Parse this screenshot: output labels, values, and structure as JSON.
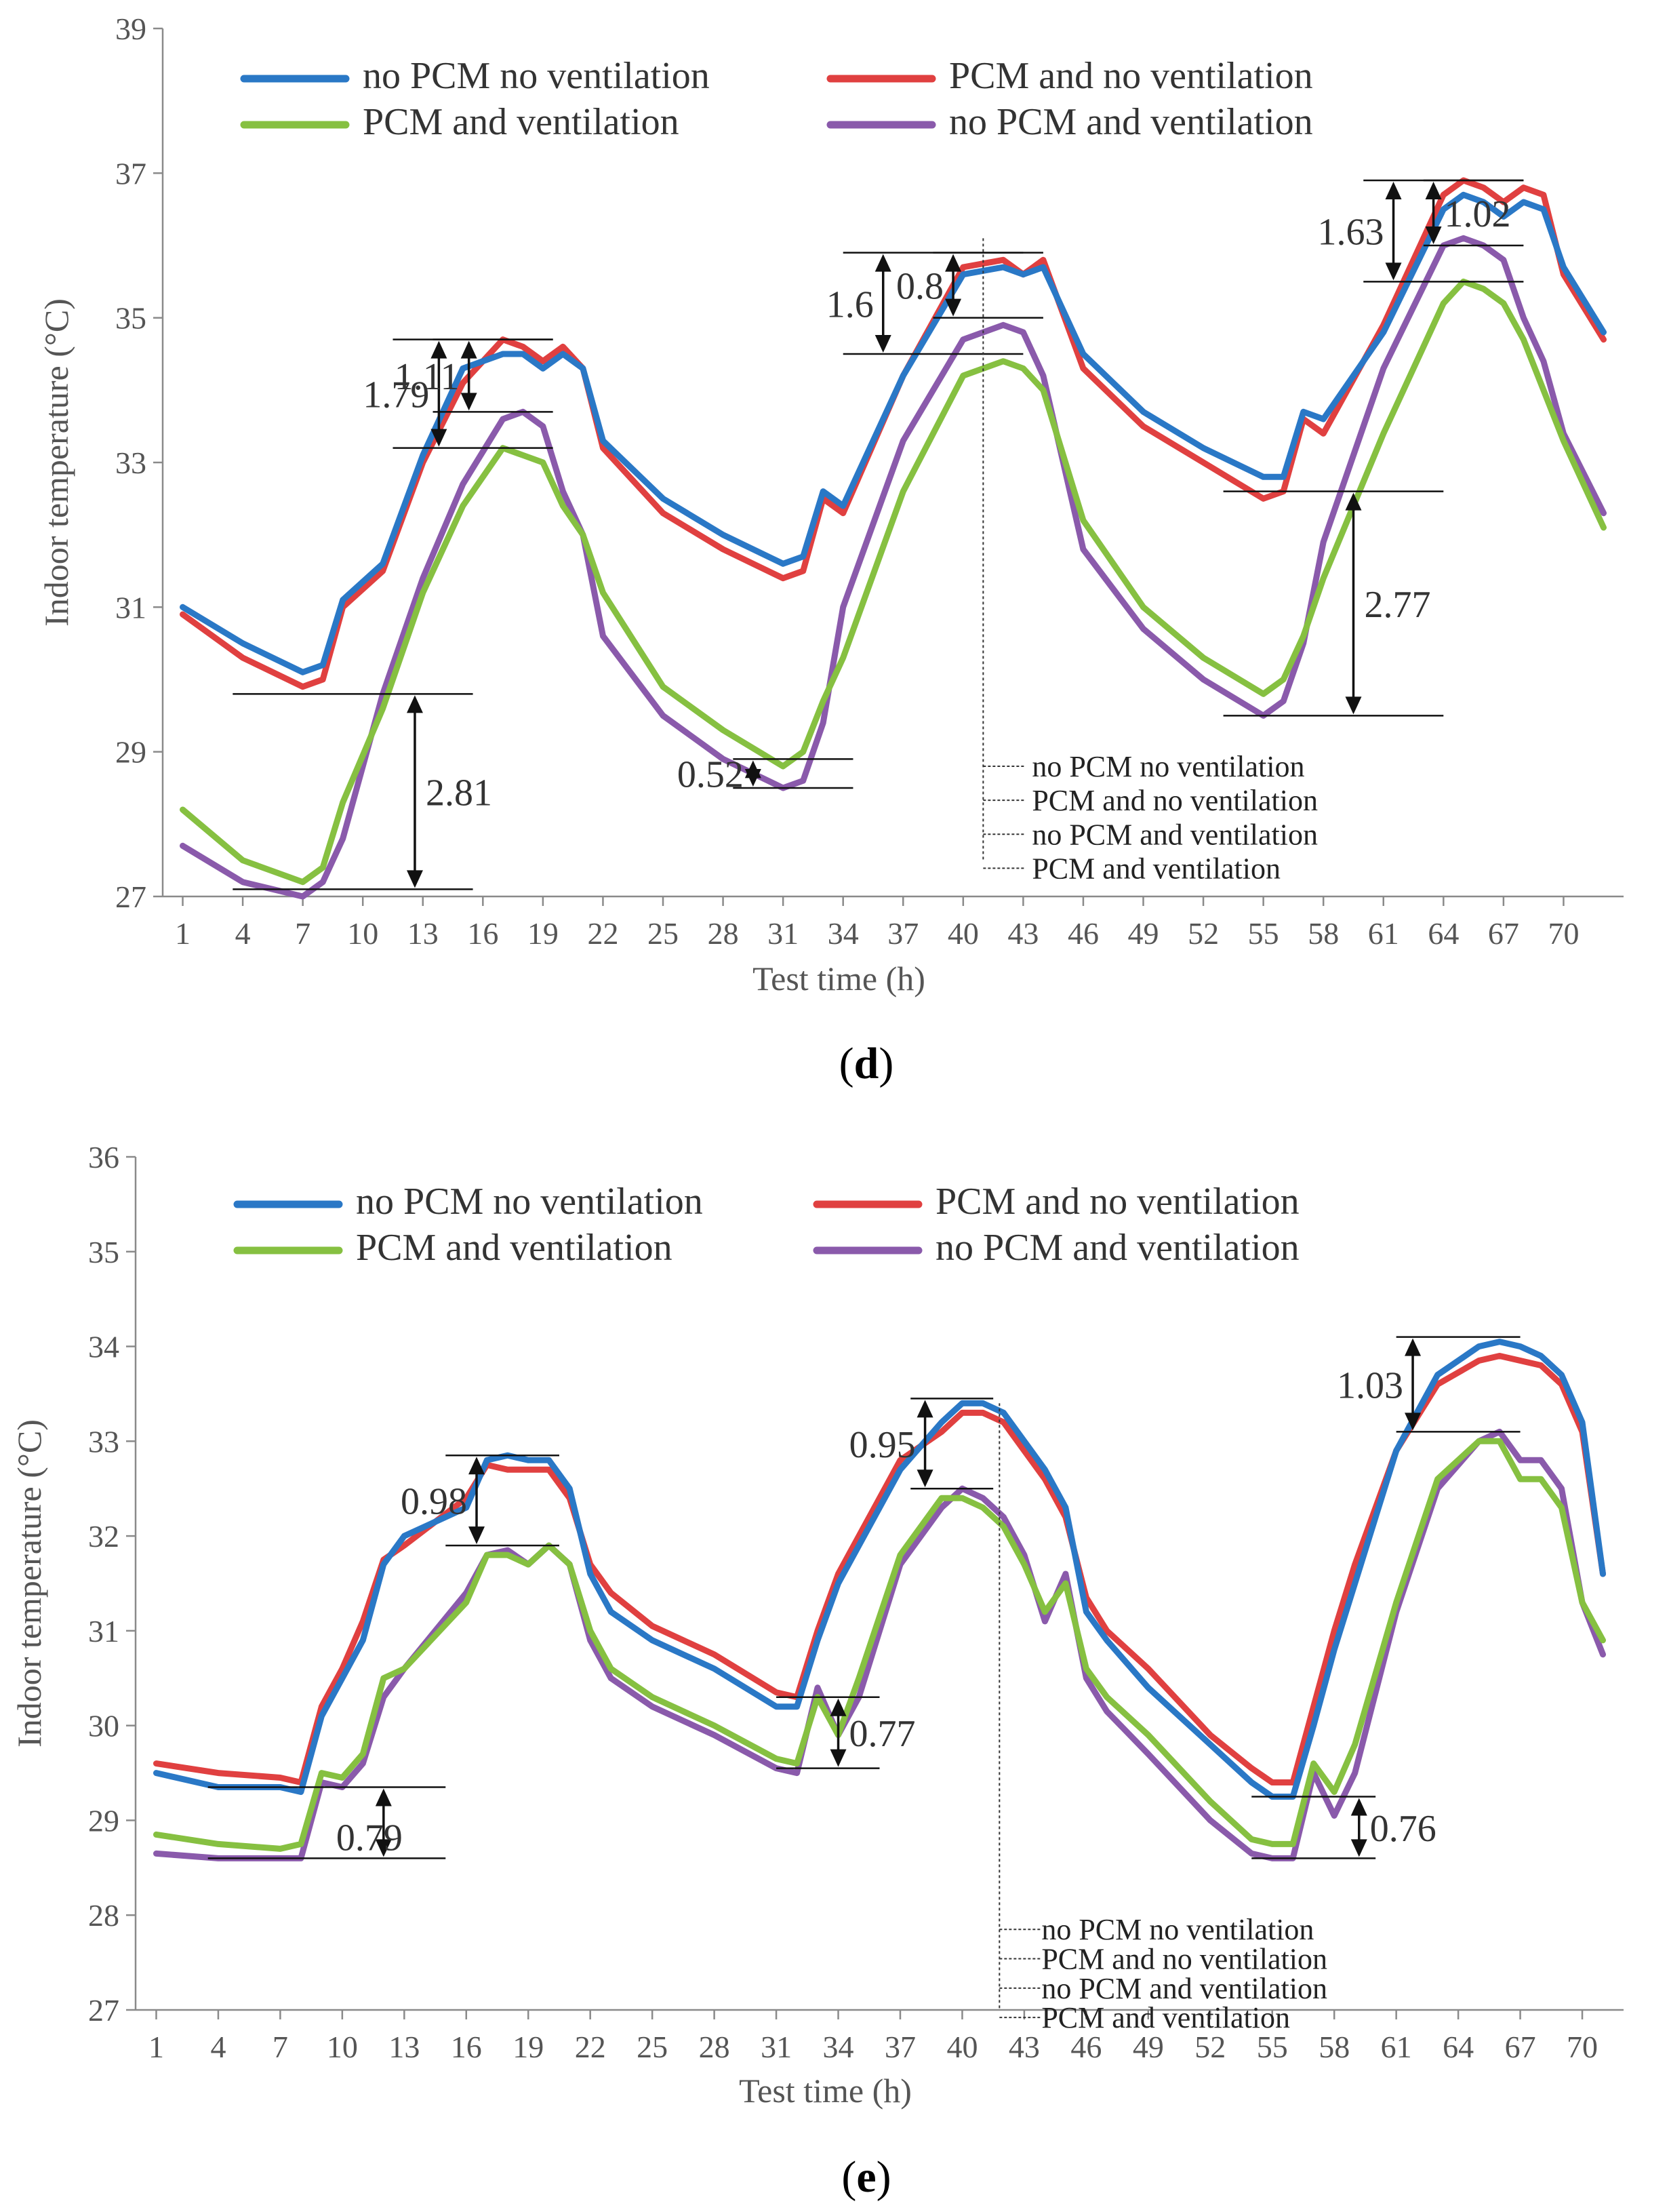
{
  "chart_data": [
    {
      "panel": "d",
      "type": "line",
      "caption": {
        "open": "(",
        "letter": "d",
        "close": ")"
      },
      "xlabel": "Test time (h)",
      "ylabel": "Indoor temperature (°C)",
      "xlim": [
        0,
        73
      ],
      "ylim": [
        27,
        39
      ],
      "x_ticks": [
        1,
        4,
        7,
        10,
        13,
        16,
        19,
        22,
        25,
        28,
        31,
        34,
        37,
        40,
        43,
        46,
        49,
        52,
        55,
        58,
        61,
        64,
        67,
        70
      ],
      "y_ticks": [
        27,
        29,
        31,
        33,
        35,
        37,
        39
      ],
      "x": [
        1,
        4,
        7,
        8,
        9,
        11,
        13,
        15,
        17,
        18,
        19,
        20,
        21,
        22,
        25,
        28,
        31,
        32,
        33,
        34,
        37,
        40,
        42,
        43,
        44,
        46,
        49,
        52,
        55,
        56,
        57,
        58,
        61,
        64,
        65,
        66,
        67,
        68,
        69,
        70,
        72
      ],
      "series": [
        {
          "name": "no PCM no ventilation",
          "color": "#2a78c6",
          "values": [
            31.0,
            30.5,
            30.1,
            30.2,
            31.1,
            31.6,
            33.1,
            34.3,
            34.5,
            34.5,
            34.3,
            34.5,
            34.3,
            33.3,
            32.5,
            32.0,
            31.6,
            31.7,
            32.6,
            32.4,
            34.2,
            35.6,
            35.7,
            35.6,
            35.7,
            34.5,
            33.7,
            33.2,
            32.8,
            32.8,
            33.7,
            33.6,
            34.8,
            36.5,
            36.7,
            36.6,
            36.4,
            36.6,
            36.5,
            35.7,
            34.8
          ]
        },
        {
          "name": "PCM and no ventilation",
          "color": "#e04040",
          "values": [
            30.9,
            30.3,
            29.9,
            30.0,
            31.0,
            31.5,
            33.0,
            34.1,
            34.7,
            34.6,
            34.4,
            34.6,
            34.3,
            33.2,
            32.3,
            31.8,
            31.4,
            31.5,
            32.5,
            32.3,
            34.2,
            35.7,
            35.8,
            35.6,
            35.8,
            34.3,
            33.5,
            33.0,
            32.5,
            32.6,
            33.6,
            33.4,
            34.9,
            36.7,
            36.9,
            36.8,
            36.6,
            36.8,
            36.7,
            35.6,
            34.7
          ]
        },
        {
          "name": "PCM and ventilation",
          "color": "#86c041",
          "values": [
            28.2,
            27.5,
            27.2,
            27.4,
            28.3,
            29.6,
            31.2,
            32.4,
            33.2,
            33.1,
            33.0,
            32.4,
            32.0,
            31.2,
            29.9,
            29.3,
            28.8,
            29.0,
            29.7,
            30.3,
            32.6,
            34.2,
            34.4,
            34.3,
            34.0,
            32.2,
            31.0,
            30.3,
            29.8,
            30.0,
            30.6,
            31.4,
            33.4,
            35.2,
            35.5,
            35.4,
            35.2,
            34.7,
            34.0,
            33.3,
            32.1
          ]
        },
        {
          "name": "no PCM and ventilation",
          "color": "#8a5aab",
          "values": [
            27.7,
            27.2,
            27.0,
            27.2,
            27.8,
            29.8,
            31.4,
            32.7,
            33.6,
            33.7,
            33.5,
            32.6,
            32.0,
            30.6,
            29.5,
            28.9,
            28.5,
            28.6,
            29.4,
            31.0,
            33.3,
            34.7,
            34.9,
            34.8,
            34.2,
            31.8,
            30.7,
            30.0,
            29.5,
            29.7,
            30.5,
            31.9,
            34.3,
            36.0,
            36.1,
            36.0,
            35.8,
            35.0,
            34.4,
            33.4,
            32.3
          ]
        }
      ],
      "annotations": [
        {
          "text": "1.79",
          "x_from": 11.5,
          "x_to": 19.5,
          "y_hi": 34.7,
          "y_lo": 33.2,
          "arrow_x": 13.8,
          "label_side": "left"
        },
        {
          "text": "1.11",
          "x_from": 13.5,
          "x_to": 19.5,
          "y_hi": 34.7,
          "y_lo": 33.7,
          "arrow_x": 15.3,
          "label_side": "left"
        },
        {
          "text": "2.81",
          "x_from": 3.5,
          "x_to": 15.5,
          "y_hi": 29.8,
          "y_lo": 27.1,
          "arrow_x": 12.6,
          "label_side": "right"
        },
        {
          "text": "0.52",
          "x_from": 28.5,
          "x_to": 34.5,
          "y_hi": 28.9,
          "y_lo": 28.5,
          "arrow_x": 29.5,
          "label_side": "left"
        },
        {
          "text": "1.6",
          "x_from": 34.0,
          "x_to": 43.0,
          "y_hi": 35.9,
          "y_lo": 34.5,
          "arrow_x": 36.0,
          "label_side": "left"
        },
        {
          "text": "0.8",
          "x_from": 38.5,
          "x_to": 44.0,
          "y_hi": 35.9,
          "y_lo": 35.0,
          "arrow_x": 39.5,
          "label_side": "left"
        },
        {
          "text": "1.63",
          "x_from": 60.0,
          "x_to": 68.0,
          "y_hi": 36.9,
          "y_lo": 35.5,
          "arrow_x": 61.5,
          "label_side": "left"
        },
        {
          "text": "1.02",
          "x_from": 63.0,
          "x_to": 68.0,
          "y_hi": 36.9,
          "y_lo": 36.0,
          "arrow_x": 63.5,
          "label_side": "right"
        },
        {
          "text": "2.77",
          "x_from": 53.0,
          "x_to": 64.0,
          "y_hi": 32.6,
          "y_lo": 29.5,
          "arrow_x": 59.5,
          "label_side": "right"
        }
      ],
      "marker_line_x": 41.0,
      "marker_line_top": 36.1,
      "marker_line_bottom": 27.5,
      "marker_labels_top": 28.8,
      "marker_labels_step": 0.47,
      "marker_labels": [
        "no PCM no ventilation",
        "PCM and no ventilation",
        "no PCM and ventilation",
        "PCM and ventilation"
      ],
      "legend_placement": "top-center"
    },
    {
      "panel": "e",
      "type": "line",
      "caption": {
        "open": "(",
        "letter": "e",
        "close": ")"
      },
      "xlabel": "Test time (h)",
      "ylabel": "Indoor temperature (°C)",
      "xlim": [
        0,
        72
      ],
      "ylim": [
        27,
        36
      ],
      "x_ticks": [
        1,
        4,
        7,
        10,
        13,
        16,
        19,
        22,
        25,
        28,
        31,
        34,
        37,
        40,
        43,
        46,
        49,
        52,
        55,
        58,
        61,
        64,
        67,
        70
      ],
      "y_ticks": [
        27,
        28,
        29,
        30,
        31,
        32,
        33,
        34,
        35,
        36
      ],
      "x": [
        1,
        4,
        7,
        8,
        9,
        10,
        11,
        12,
        13,
        16,
        17,
        18,
        19,
        20,
        21,
        22,
        23,
        25,
        28,
        31,
        32,
        33,
        34,
        35,
        37,
        39,
        40,
        41,
        42,
        43,
        44,
        45,
        46,
        47,
        49,
        52,
        54,
        55,
        56,
        57,
        58,
        59,
        61,
        63,
        65,
        66,
        67,
        68,
        69,
        70,
        71
      ],
      "series": [
        {
          "name": "no PCM no ventilation",
          "color": "#2a78c6",
          "values": [
            29.5,
            29.35,
            29.35,
            29.3,
            30.1,
            30.5,
            30.9,
            31.7,
            32.0,
            32.3,
            32.8,
            32.85,
            32.8,
            32.8,
            32.5,
            31.6,
            31.2,
            30.9,
            30.6,
            30.2,
            30.2,
            30.9,
            31.5,
            31.9,
            32.7,
            33.2,
            33.4,
            33.4,
            33.3,
            33.0,
            32.7,
            32.3,
            31.2,
            30.9,
            30.4,
            29.8,
            29.4,
            29.25,
            29.25,
            30.0,
            30.8,
            31.5,
            32.9,
            33.7,
            34.0,
            34.05,
            34.0,
            33.9,
            33.7,
            33.2,
            31.6
          ]
        },
        {
          "name": "PCM and no ventilation",
          "color": "#e04040",
          "values": [
            29.6,
            29.5,
            29.45,
            29.4,
            30.2,
            30.6,
            31.1,
            31.75,
            31.9,
            32.4,
            32.75,
            32.7,
            32.7,
            32.7,
            32.4,
            31.7,
            31.4,
            31.05,
            30.75,
            30.35,
            30.3,
            31.0,
            31.6,
            32.0,
            32.8,
            33.1,
            33.3,
            33.3,
            33.2,
            32.9,
            32.6,
            32.2,
            31.35,
            31.0,
            30.6,
            29.9,
            29.55,
            29.4,
            29.4,
            30.2,
            31.0,
            31.7,
            32.9,
            33.6,
            33.85,
            33.9,
            33.85,
            33.8,
            33.6,
            33.1,
            31.6
          ]
        },
        {
          "name": "PCM and ventilation",
          "color": "#86c041",
          "values": [
            28.85,
            28.75,
            28.7,
            28.75,
            29.5,
            29.45,
            29.7,
            30.5,
            30.6,
            31.3,
            31.8,
            31.8,
            31.7,
            31.9,
            31.7,
            31.0,
            30.6,
            30.3,
            30.0,
            29.65,
            29.6,
            30.3,
            29.9,
            30.5,
            31.8,
            32.4,
            32.4,
            32.3,
            32.1,
            31.7,
            31.2,
            31.5,
            30.6,
            30.3,
            29.9,
            29.2,
            28.8,
            28.75,
            28.75,
            29.6,
            29.3,
            29.8,
            31.3,
            32.6,
            33.0,
            33.0,
            32.6,
            32.6,
            32.3,
            31.3,
            30.9
          ]
        },
        {
          "name": "no PCM and ventilation",
          "color": "#8a5aab",
          "values": [
            28.65,
            28.6,
            28.6,
            28.6,
            29.4,
            29.35,
            29.6,
            30.3,
            30.6,
            31.4,
            31.8,
            31.85,
            31.7,
            31.9,
            31.7,
            30.9,
            30.5,
            30.2,
            29.9,
            29.55,
            29.5,
            30.4,
            29.9,
            30.3,
            31.7,
            32.3,
            32.5,
            32.4,
            32.2,
            31.8,
            31.1,
            31.6,
            30.5,
            30.15,
            29.7,
            29.0,
            28.65,
            28.6,
            28.6,
            29.5,
            29.05,
            29.5,
            31.2,
            32.5,
            33.0,
            33.1,
            32.8,
            32.8,
            32.5,
            31.3,
            30.75
          ]
        }
      ],
      "annotations": [
        {
          "text": "0.98",
          "x_from": 15.0,
          "x_to": 20.5,
          "y_hi": 32.85,
          "y_lo": 31.9,
          "arrow_x": 16.5,
          "label_side": "left"
        },
        {
          "text": "0.79",
          "x_from": 3.5,
          "x_to": 15.0,
          "y_hi": 29.35,
          "y_lo": 28.6,
          "arrow_x": 12.0,
          "label_side": "right-below"
        },
        {
          "text": "0.77",
          "x_from": 31.0,
          "x_to": 36.0,
          "y_hi": 30.3,
          "y_lo": 29.55,
          "arrow_x": 34.0,
          "label_side": "right"
        },
        {
          "text": "0.95",
          "x_from": 37.5,
          "x_to": 41.5,
          "y_hi": 33.45,
          "y_lo": 32.5,
          "arrow_x": 38.2,
          "label_side": "left"
        },
        {
          "text": "1.03",
          "x_from": 61.0,
          "x_to": 67.0,
          "y_hi": 34.1,
          "y_lo": 33.1,
          "arrow_x": 61.8,
          "label_side": "left"
        },
        {
          "text": "0.76",
          "x_from": 54.0,
          "x_to": 60.0,
          "y_hi": 29.25,
          "y_lo": 28.6,
          "arrow_x": 59.2,
          "label_side": "right"
        }
      ],
      "marker_line_x": 41.8,
      "marker_line_top": 33.4,
      "marker_line_bottom": 27.0,
      "marker_labels_top": 27.85,
      "marker_labels_step": 0.31,
      "marker_labels": [
        "no PCM no ventilation",
        "PCM and no ventilation",
        "no PCM and ventilation",
        "PCM and ventilation"
      ],
      "legend_placement": "top-center"
    }
  ]
}
